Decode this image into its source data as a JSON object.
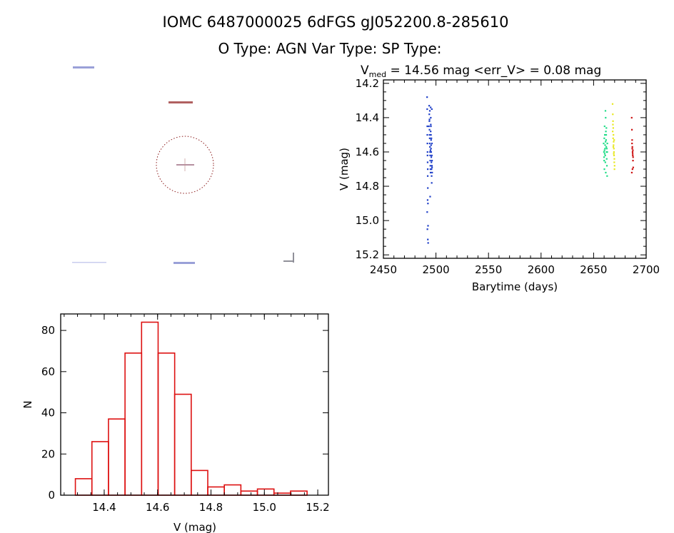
{
  "header": {
    "title_line1": "IOMC 6487000025    6dFGS gJ052200.8-285610",
    "title_line2": "O Type: AGN  Var Type:   SP Type:"
  },
  "finder_chart": {
    "target_color": "#8b1a1a",
    "label_color": "#1a1a8b"
  },
  "chart_data": [
    {
      "type": "scatter",
      "title_prefix": "V",
      "title_subscript": "med",
      "title_rest": " = 14.56 mag <err_V> = 0.08 mag",
      "xlabel": "Barytime (days)",
      "ylabel": "V (mag)",
      "xlim": [
        2450,
        2700
      ],
      "ylim": [
        15.22,
        14.18
      ],
      "y_reversed": true,
      "xticks": [
        "2450",
        "2500",
        "2550",
        "2600",
        "2650",
        "2700"
      ],
      "yticks": [
        "14.2",
        "14.4",
        "14.6",
        "14.8",
        "15.0",
        "15.2"
      ],
      "series": [
        {
          "color": "#1f3fc8",
          "x": [
            2491.5,
            2491.6,
            2491.7,
            2491.8,
            2491.9,
            2492.0,
            2492.1,
            2492.2,
            2492.3,
            2492.4,
            2492.5,
            2493.5,
            2493.6,
            2493.7,
            2493.8,
            2493.9,
            2494.0,
            2494.1,
            2494.2,
            2494.3,
            2494.4,
            2494.5,
            2494.6,
            2494.7,
            2494.8,
            2494.9,
            2495.0,
            2495.1,
            2495.2,
            2495.3,
            2495.4,
            2495.5,
            2495.6,
            2495.7,
            2495.8,
            2495.9,
            2496.0,
            2496.1,
            2496.2,
            2496.3,
            2491.6,
            2491.8,
            2492.0,
            2492.2,
            2491.7,
            2491.9,
            2492.1,
            2493.2,
            2494.4,
            2495.2,
            2496.0,
            2494.9,
            2495.3,
            2496.2,
            2493.8,
            2494.1,
            2494.7,
            2495.6,
            2496.1,
            2495.0
          ],
          "y": [
            14.28,
            14.35,
            14.45,
            14.55,
            14.62,
            14.66,
            14.74,
            14.81,
            14.9,
            15.03,
            15.13,
            14.33,
            14.38,
            14.42,
            14.47,
            14.5,
            14.52,
            14.55,
            14.57,
            14.6,
            14.62,
            14.65,
            14.68,
            14.7,
            14.72,
            14.34,
            14.4,
            14.45,
            14.5,
            14.56,
            14.6,
            14.63,
            14.66,
            14.7,
            14.74,
            14.78,
            14.35,
            14.55,
            14.65,
            14.72,
            14.95,
            15.05,
            14.88,
            15.11,
            14.5,
            14.6,
            14.7,
            14.45,
            14.86,
            14.58,
            14.62,
            14.48,
            14.53,
            14.69,
            14.41,
            14.36,
            14.59,
            14.52,
            14.68,
            14.44
          ]
        },
        {
          "color": "#22dd88",
          "x": [
            2659.5,
            2659.8,
            2660.0,
            2660.2,
            2660.4,
            2660.6,
            2660.8,
            2661.0,
            2661.2,
            2661.4,
            2661.6,
            2661.8,
            2662.0,
            2662.2,
            2662.4,
            2662.6,
            2662.8,
            2663.0,
            2660.1,
            2660.5,
            2661.1,
            2661.5,
            2662.1,
            2662.5,
            2659.9,
            2660.9,
            2661.9,
            2662.9,
            2660.3,
            2661.3
          ],
          "y": [
            14.55,
            14.6,
            14.65,
            14.7,
            14.45,
            14.5,
            14.58,
            14.62,
            14.36,
            14.4,
            14.48,
            14.53,
            14.57,
            14.6,
            14.64,
            14.68,
            14.74,
            14.55,
            14.52,
            14.61,
            14.66,
            14.72,
            14.46,
            14.58,
            14.63,
            14.56,
            14.5,
            14.6,
            14.59,
            14.54
          ]
        },
        {
          "color": "#e8e820",
          "x": [
            2668.0,
            2668.2,
            2668.4,
            2668.6,
            2668.8,
            2669.0,
            2669.2,
            2669.4,
            2669.6,
            2669.8,
            2668.1,
            2668.5,
            2668.9,
            2669.3,
            2669.7,
            2668.3,
            2668.7,
            2669.1,
            2669.5,
            2669.9
          ],
          "y": [
            14.32,
            14.38,
            14.42,
            14.46,
            14.5,
            14.54,
            14.58,
            14.62,
            14.66,
            14.7,
            14.48,
            14.52,
            14.56,
            14.6,
            14.64,
            14.44,
            14.57,
            14.61,
            14.53,
            14.68
          ]
        },
        {
          "color": "#cc1111",
          "x": [
            2686.2,
            2686.4,
            2686.6,
            2686.8,
            2687.0,
            2687.2,
            2687.4,
            2687.6,
            2686.3,
            2686.7,
            2687.1,
            2687.5,
            2686.5,
            2686.9,
            2687.3
          ],
          "y": [
            14.4,
            14.47,
            14.53,
            14.57,
            14.6,
            14.62,
            14.65,
            14.69,
            14.72,
            14.58,
            14.61,
            14.63,
            14.55,
            14.7,
            14.59
          ]
        }
      ]
    },
    {
      "type": "bar",
      "subtype": "histogram",
      "xlabel": "V (mag)",
      "ylabel": "N",
      "xlim": [
        14.237,
        15.24
      ],
      "ylim": [
        0,
        88
      ],
      "xticks": [
        "14.4",
        "14.6",
        "14.8",
        "15.0",
        "15.2"
      ],
      "yticks": [
        "0",
        "20",
        "40",
        "60",
        "80"
      ],
      "bin_start": 14.292,
      "bin_width": 0.062,
      "values": [
        8,
        26,
        37,
        69,
        84,
        69,
        49,
        12,
        4,
        5,
        2,
        3,
        1,
        2
      ],
      "color": "#dd1111"
    }
  ]
}
